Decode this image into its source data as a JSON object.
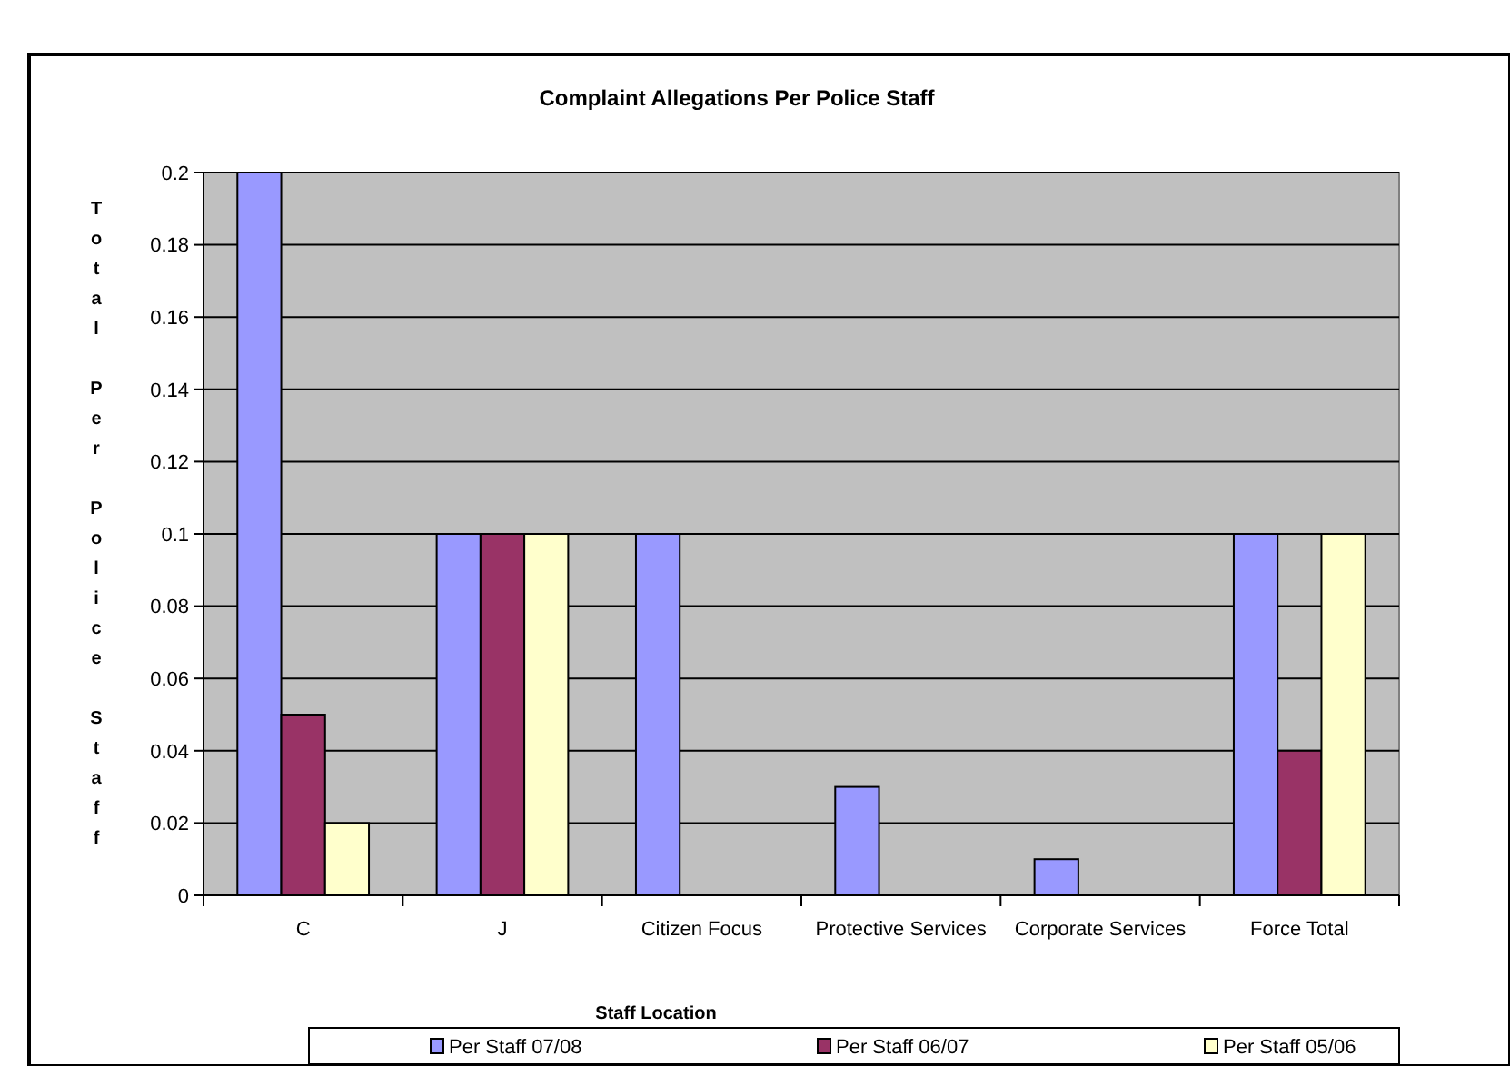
{
  "chart_data": {
    "type": "bar",
    "title": "Complaint Allegations Per Police Staff",
    "xlabel": "Staff Location",
    "ylabel": "Total Per Police Staff",
    "categories": [
      "C",
      "J",
      "Citizen Focus",
      "Protective Services",
      "Corporate Services",
      "Force Total"
    ],
    "series": [
      {
        "name": "Per Staff 07/08",
        "color": "#9999ff",
        "values": [
          0.2,
          0.1,
          0.1,
          0.03,
          0.01,
          0.1
        ]
      },
      {
        "name": "Per Staff 06/07",
        "color": "#993366",
        "values": [
          0.05,
          0.1,
          null,
          null,
          null,
          0.04
        ]
      },
      {
        "name": "Per Staff 05/06",
        "color": "#ffffcc",
        "values": [
          0.02,
          0.1,
          null,
          null,
          null,
          0.1
        ]
      }
    ],
    "ylim": [
      0,
      0.2
    ],
    "yticks": [
      0,
      0.02,
      0.04,
      0.06,
      0.08,
      0.1,
      0.12,
      0.14,
      0.16,
      0.18,
      0.2
    ],
    "grid": "y",
    "legend": "bottom"
  }
}
